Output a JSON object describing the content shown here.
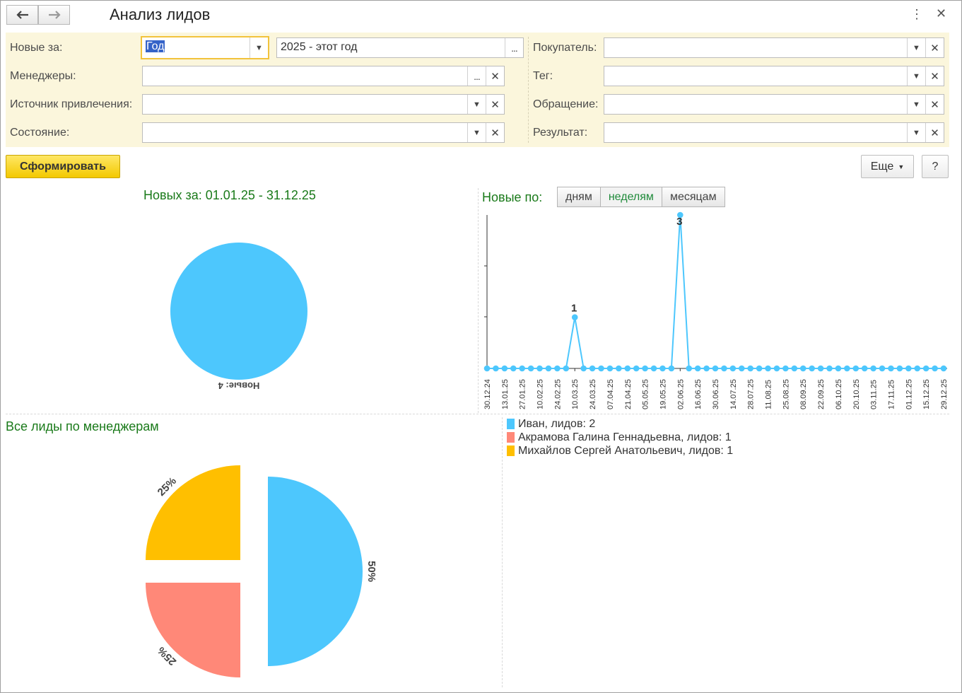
{
  "window": {
    "title": "Анализ лидов",
    "back_icon": "arrow-left-icon",
    "forward_icon": "arrow-right-icon",
    "more_icon": "vertical-dots-icon",
    "close_icon": "close-icon"
  },
  "filters": {
    "period_label": "Новые за:",
    "period_type_value": "Год",
    "period_value": "2025 - этот год",
    "period_btn": "...",
    "managers_label": "Менеджеры:",
    "managers_value": "",
    "source_label": "Источник привлечения:",
    "source_value": "",
    "state_label": "Состояние:",
    "state_value": "",
    "buyer_label": "Покупатель:",
    "buyer_value": "",
    "tag_label": "Тег:",
    "tag_value": "",
    "appeal_label": "Обращение:",
    "appeal_value": "",
    "result_label": "Результат:",
    "result_value": "",
    "dots": "...",
    "dropdown_icon": "▾",
    "clear_icon": "×"
  },
  "actions": {
    "generate_label": "Сформировать",
    "more_label": "Еще",
    "help_label": "?"
  },
  "new_pie": {
    "title": "Новых за: 01.01.25 - 31.12.25",
    "slice_label": "Новые: 4"
  },
  "line_panel": {
    "title": "Новые по:",
    "tabs": [
      "дням",
      "неделям",
      "месяцам"
    ],
    "active_tab": "неделям"
  },
  "managers_panel": {
    "title": "Все лиды по менеджерам",
    "legend": [
      {
        "label": "Иван, лидов: 2",
        "color": "#4dc7fd"
      },
      {
        "label": "Акрамова Галина Геннадьевна, лидов: 1",
        "color": "#ff8878"
      },
      {
        "label": "Михайлов Сергей Анатольевич, лидов: 1",
        "color": "#ffbf00"
      }
    ]
  },
  "colors": {
    "accent_blue": "#4dc7fd",
    "accent_red": "#ff8878",
    "accent_yellow": "#ffbf00",
    "title_green": "#1a7a1a",
    "panel_bg": "#fbf6dc"
  },
  "chart_data": [
    {
      "type": "pie",
      "title": "Новых за: 01.01.25 - 31.12.25",
      "slices": [
        {
          "label": "Новые: 4",
          "value": 4,
          "color": "#4dc7fd"
        }
      ]
    },
    {
      "type": "line",
      "title": "Новые по:",
      "x": [
        "30.12.24",
        "06.01.25",
        "13.01.25",
        "20.01.25",
        "27.01.25",
        "03.02.25",
        "10.02.25",
        "17.02.25",
        "24.02.25",
        "03.03.25",
        "10.03.25",
        "17.03.25",
        "24.03.25",
        "31.03.25",
        "07.04.25",
        "14.04.25",
        "21.04.25",
        "28.04.25",
        "05.05.25",
        "12.05.25",
        "19.05.25",
        "26.05.25",
        "02.06.25",
        "09.06.25",
        "16.06.25",
        "23.06.25",
        "30.06.25",
        "07.07.25",
        "14.07.25",
        "21.07.25",
        "28.07.25",
        "04.08.25",
        "11.08.25",
        "18.08.25",
        "25.08.25",
        "01.09.25",
        "08.09.25",
        "15.09.25",
        "22.09.25",
        "29.09.25",
        "06.10.25",
        "13.10.25",
        "20.10.25",
        "27.10.25",
        "03.11.25",
        "10.11.25",
        "17.11.25",
        "24.11.25",
        "01.12.25",
        "08.12.25",
        "15.12.25",
        "22.12.25",
        "29.12.25"
      ],
      "x_tick_labels": [
        "30.12.24",
        "13.01.25",
        "27.01.25",
        "10.02.25",
        "24.02.25",
        "10.03.25",
        "24.03.25",
        "07.04.25",
        "21.04.25",
        "05.05.25",
        "19.05.25",
        "02.06.25",
        "16.06.25",
        "30.06.25",
        "14.07.25",
        "28.07.25",
        "11.08.25",
        "25.08.25",
        "08.09.25",
        "22.09.25",
        "06.10.25",
        "20.10.25",
        "03.11.25",
        "17.11.25",
        "01.12.25",
        "15.12.25",
        "29.12.25"
      ],
      "series": [
        {
          "values": [
            0,
            0,
            0,
            0,
            0,
            0,
            0,
            0,
            0,
            0,
            1,
            0,
            0,
            0,
            0,
            0,
            0,
            0,
            0,
            0,
            0,
            0,
            3,
            0,
            0,
            0,
            0,
            0,
            0,
            0,
            0,
            0,
            0,
            0,
            0,
            0,
            0,
            0,
            0,
            0,
            0,
            0,
            0,
            0,
            0,
            0,
            0,
            0,
            0,
            0,
            0,
            0,
            0
          ],
          "color": "#4dc7fd"
        }
      ],
      "data_labels": [
        {
          "x": "10.03.25",
          "text": "1"
        },
        {
          "x": "02.06.25",
          "text": "3"
        }
      ],
      "ylim": [
        0,
        3
      ],
      "grid": false
    },
    {
      "type": "pie",
      "title": "Все лиды по менеджерам",
      "slices": [
        {
          "label": "Иван, лидов: 2",
          "value": 2,
          "percent_label": "50%",
          "color": "#4dc7fd"
        },
        {
          "label": "Акрамова Галина Геннадьевна, лидов: 1",
          "value": 1,
          "percent_label": "25%",
          "color": "#ff8878"
        },
        {
          "label": "Михайлов Сергей Анатольевич, лидов: 1",
          "value": 1,
          "percent_label": "25%",
          "color": "#ffbf00"
        }
      ],
      "legend_position": "right"
    }
  ]
}
